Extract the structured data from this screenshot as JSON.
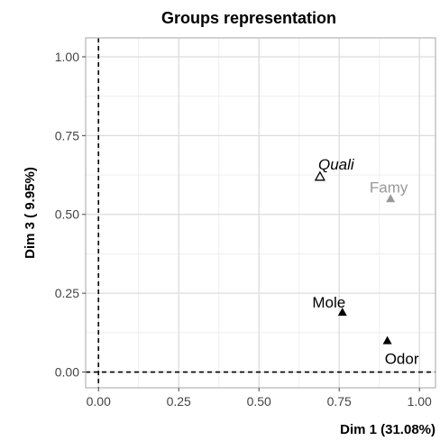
{
  "chart_data": {
    "type": "scatter",
    "title": "Groups representation",
    "xlabel": "Dim 1 (31.08%)",
    "ylabel": "Dim 3 ( 9.95%)",
    "xlim": [
      -0.04,
      1.05
    ],
    "ylim": [
      -0.05,
      1.06
    ],
    "x_ticks": [
      0.0,
      0.25,
      0.5,
      0.75,
      1.0
    ],
    "x_tick_labels": [
      "0.00",
      "0.25",
      "0.50",
      "0.75",
      "1.00"
    ],
    "y_ticks": [
      0.0,
      0.25,
      0.5,
      0.75,
      1.0
    ],
    "y_tick_labels": [
      "0.00",
      "0.25",
      "0.50",
      "0.75",
      "1.00"
    ],
    "grid": true,
    "reference_lines": {
      "x": 0,
      "y": 0,
      "style": "dashed"
    },
    "points": [
      {
        "label": "Quali",
        "x": 0.69,
        "y": 0.62,
        "marker": "open-triangle",
        "color": "#000000",
        "italic": true
      },
      {
        "label": "Famy",
        "x": 0.91,
        "y": 0.55,
        "marker": "filled-triangle",
        "color": "#999999",
        "italic": false
      },
      {
        "label": "Mole",
        "x": 0.76,
        "y": 0.19,
        "marker": "filled-triangle",
        "color": "#000000",
        "italic": false
      },
      {
        "label": "Odor",
        "x": 0.9,
        "y": 0.1,
        "marker": "filled-triangle",
        "color": "#000000",
        "italic": false
      }
    ]
  }
}
